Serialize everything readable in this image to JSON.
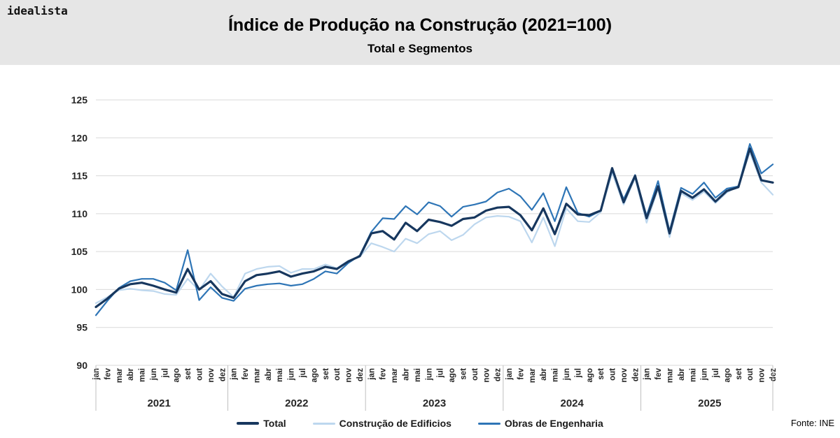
{
  "header": {
    "logo": "idealista",
    "title": "Índice de Produção na Construção (2021=100)",
    "subtitle": "Total e Segmentos"
  },
  "footer": {
    "source": "Fonte: INE"
  },
  "chart_data": {
    "type": "line",
    "title": "Índice de Produção na Construção (2021=100)",
    "subtitle": "Total e Segmentos",
    "ylim": [
      90,
      125
    ],
    "yticks": [
      90,
      95,
      100,
      105,
      110,
      115,
      120,
      125
    ],
    "grid": true,
    "legend_position": "bottom",
    "months": [
      "jan",
      "fev",
      "mar",
      "abr",
      "mai",
      "jun",
      "jul",
      "ago",
      "set",
      "out",
      "nov",
      "dez"
    ],
    "years": [
      "2021",
      "2022",
      "2023",
      "2024",
      "2025"
    ],
    "colors": {
      "grid": "#d9d9d9",
      "axis_text": "#262626",
      "separator": "#bfbfbf"
    },
    "draw_order": [
      1,
      2,
      0
    ],
    "series": [
      {
        "name": "Total",
        "color": "#17375e",
        "width": 3.2,
        "values": [
          97.7,
          98.8,
          100.1,
          100.7,
          100.9,
          100.5,
          100.0,
          99.6,
          102.7,
          100.0,
          101.1,
          99.4,
          98.9,
          101.1,
          101.9,
          102.1,
          102.4,
          101.7,
          102.1,
          102.4,
          103.0,
          102.7,
          103.7,
          104.4,
          107.4,
          107.7,
          106.6,
          108.8,
          107.7,
          109.2,
          108.9,
          108.4,
          109.3,
          109.5,
          110.4,
          110.8,
          110.9,
          109.8,
          107.8,
          110.7,
          107.3,
          111.3,
          109.9,
          109.8,
          110.4,
          116.0,
          111.5,
          115.0,
          109.4,
          113.6,
          107.4,
          113.0,
          112.1,
          113.2,
          111.6,
          113.0,
          113.5,
          118.6,
          114.4,
          114.1
        ]
      },
      {
        "name": "Construção de Edificios",
        "color": "#bdd7ee",
        "width": 2.2,
        "values": [
          98.2,
          99.0,
          99.9,
          100.1,
          99.9,
          99.8,
          99.4,
          99.3,
          101.4,
          99.9,
          102.1,
          100.4,
          99.0,
          102.1,
          102.7,
          103.0,
          103.1,
          102.2,
          102.7,
          102.7,
          103.3,
          102.8,
          103.8,
          104.3,
          106.1,
          105.6,
          105.0,
          106.7,
          106.1,
          107.3,
          107.7,
          106.5,
          107.2,
          108.6,
          109.5,
          109.7,
          109.6,
          109.0,
          106.2,
          109.5,
          105.7,
          110.7,
          109.0,
          108.9,
          110.2,
          115.4,
          111.2,
          114.7,
          108.8,
          113.3,
          106.9,
          112.7,
          111.8,
          112.9,
          111.4,
          112.8,
          113.7,
          118.1,
          114.1,
          112.5
        ]
      },
      {
        "name": "Obras de Engenharia",
        "color": "#2e75b6",
        "width": 2.2,
        "values": [
          96.6,
          98.5,
          100.2,
          101.1,
          101.4,
          101.4,
          100.9,
          99.9,
          105.2,
          98.6,
          100.3,
          98.9,
          98.5,
          100.1,
          100.5,
          100.7,
          100.8,
          100.5,
          100.7,
          101.4,
          102.4,
          102.1,
          103.5,
          104.5,
          107.6,
          109.4,
          109.3,
          111.0,
          109.9,
          111.5,
          111.0,
          109.6,
          110.9,
          111.2,
          111.6,
          112.8,
          113.3,
          112.3,
          110.5,
          112.7,
          109.0,
          113.5,
          110.1,
          109.6,
          110.4,
          115.7,
          111.9,
          115.1,
          109.7,
          114.3,
          107.7,
          113.4,
          112.6,
          114.1,
          112.1,
          113.3,
          113.6,
          119.2,
          115.3,
          116.5
        ]
      }
    ]
  }
}
